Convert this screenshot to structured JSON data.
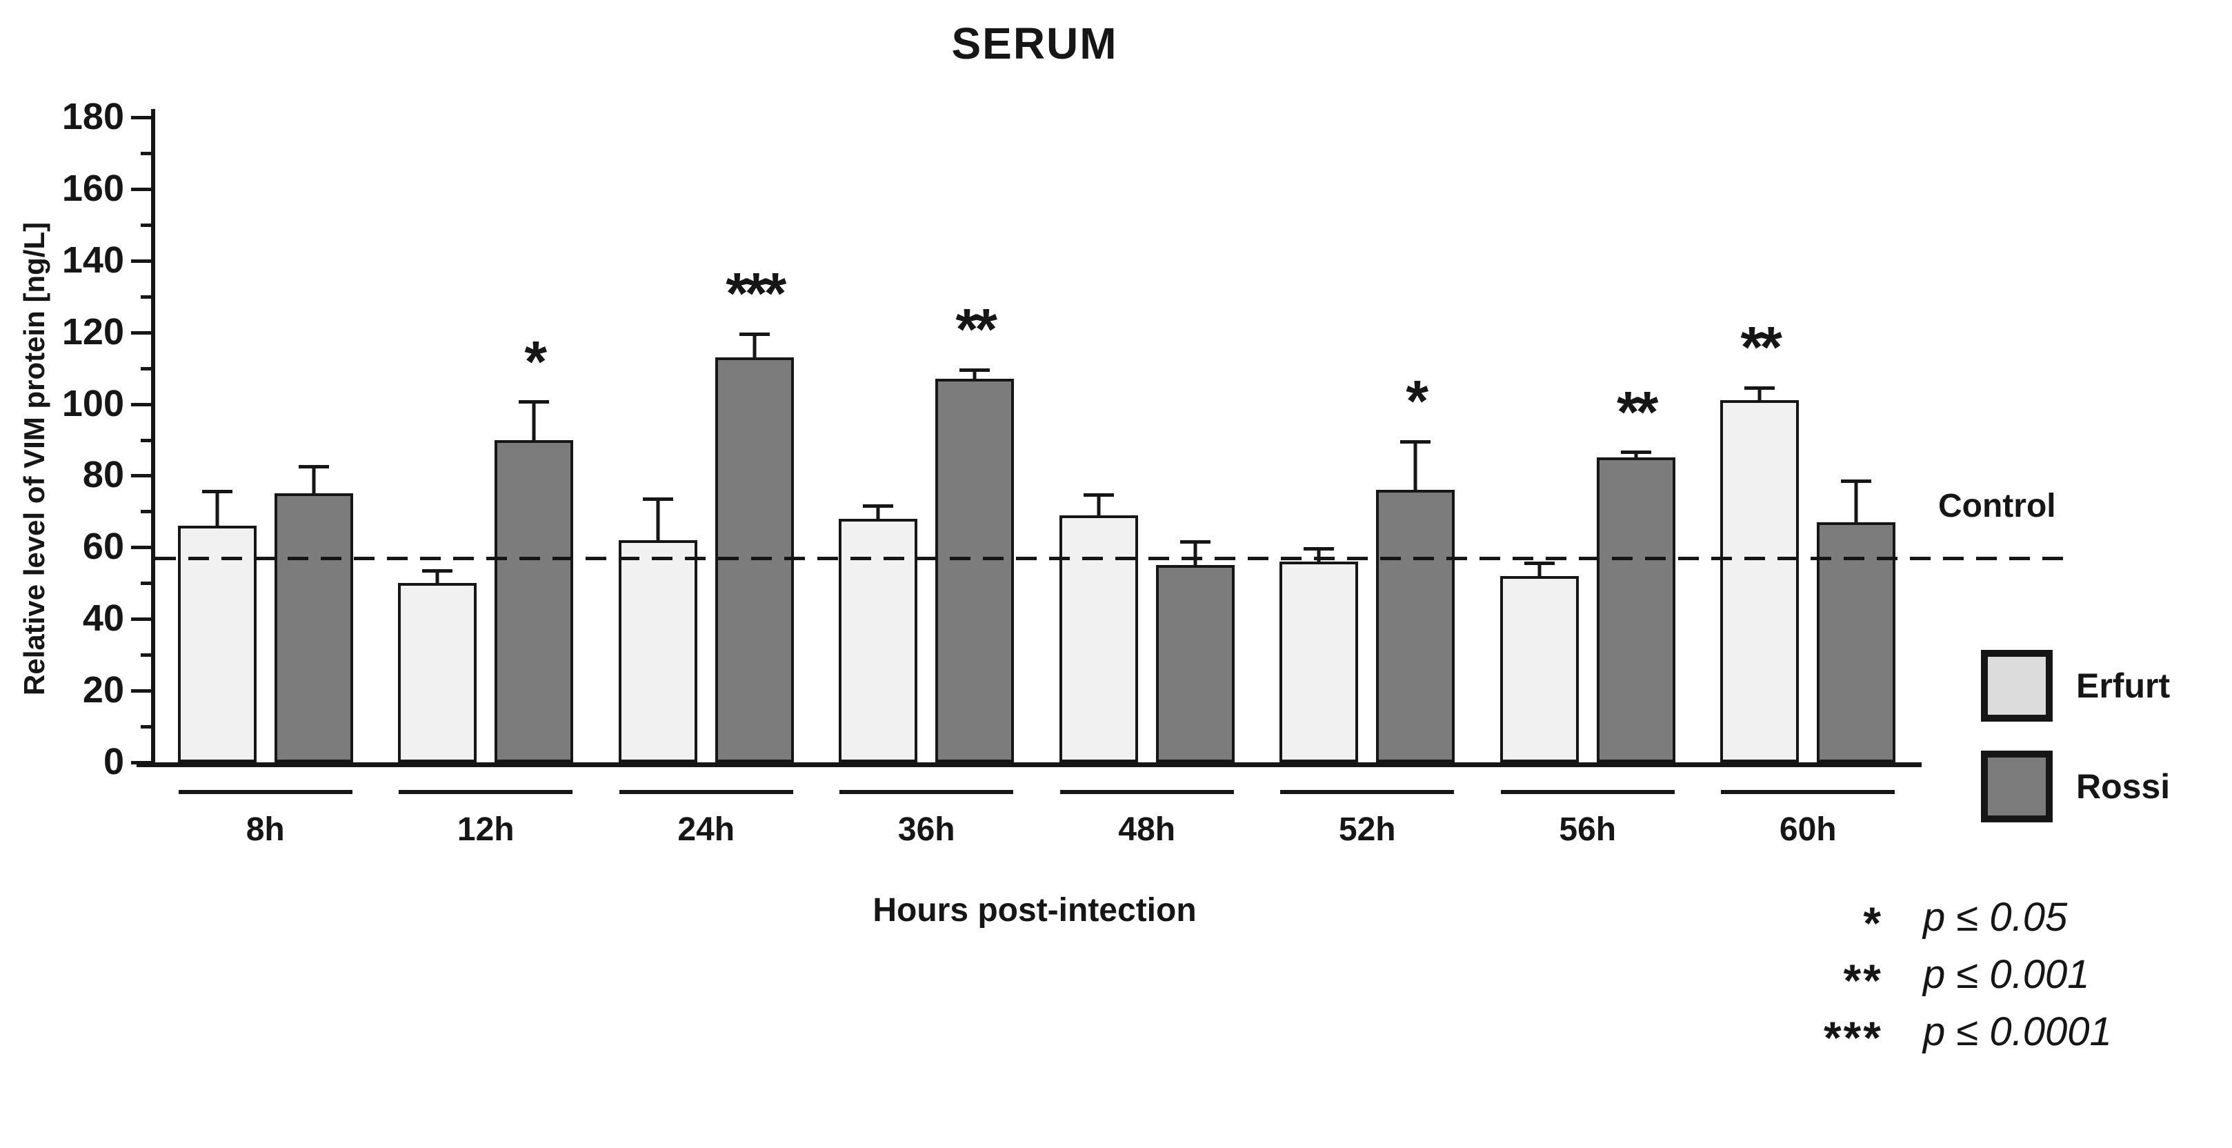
{
  "title": "SERUM",
  "y_axis": {
    "label": "Relative level of VIM protein [ng/L]",
    "min": 0,
    "max": 180,
    "major_step": 20,
    "minor_step": 10
  },
  "x_axis": {
    "label": "Hours post-intection"
  },
  "control_line": {
    "label": "Control",
    "value": 57
  },
  "legend": [
    {
      "name": "Erfurt",
      "color": "#f1f1f1"
    },
    {
      "name": "Rossi",
      "color": "#7c7c7c"
    }
  ],
  "significance_key": [
    {
      "stars": "*",
      "label": "p ≤ 0.05"
    },
    {
      "stars": "**",
      "label": "p ≤ 0.001"
    },
    {
      "stars": "***",
      "label": "p ≤ 0.0001"
    }
  ],
  "chart_data": {
    "type": "bar",
    "title": "SERUM",
    "xlabel": "Hours post-intection",
    "ylabel": "Relative level of VIM protein [ng/L]",
    "ylim": [
      0,
      180
    ],
    "y_ticks": [
      0,
      20,
      40,
      60,
      80,
      100,
      120,
      140,
      160,
      180
    ],
    "grid": false,
    "legend_position": "right",
    "control_value": 57,
    "categories": [
      "8h",
      "12h",
      "24h",
      "36h",
      "48h",
      "52h",
      "56h",
      "60h"
    ],
    "series": [
      {
        "name": "Erfurt",
        "color": "#f1f1f1",
        "values": [
          66,
          50,
          62,
          68,
          69,
          56,
          52,
          101
        ],
        "errors": [
          10,
          4,
          12,
          4,
          6,
          4,
          4,
          4
        ],
        "significance": [
          "",
          "",
          "",
          "",
          "",
          "",
          "",
          "**"
        ]
      },
      {
        "name": "Rossi",
        "color": "#7c7c7c",
        "values": [
          75,
          90,
          113,
          107,
          55,
          76,
          85,
          67
        ],
        "errors": [
          8,
          11,
          7,
          3,
          7,
          14,
          2,
          12
        ],
        "significance": [
          "",
          "*",
          "***",
          "**",
          "",
          "*",
          "**",
          ""
        ]
      }
    ]
  }
}
